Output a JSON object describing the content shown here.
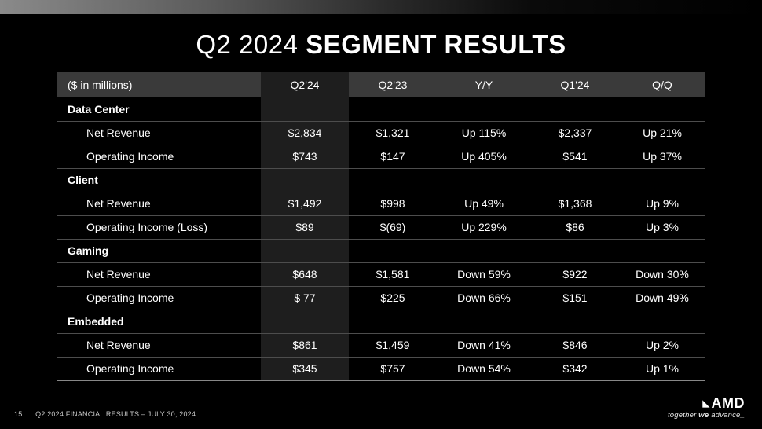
{
  "title": {
    "light": "Q2 2024 ",
    "bold": "SEGMENT RESULTS"
  },
  "table": {
    "unit_label": "($ in millions)",
    "columns": [
      "Q2'24",
      "Q2'23",
      "Y/Y",
      "Q1'24",
      "Q/Q"
    ],
    "highlight_column_index": 0,
    "highlight_bg": "#1e1e1e",
    "header_bg": "#3a3a3a",
    "border_color": "#4d4d4d",
    "segments": [
      {
        "name": "Data Center",
        "rows": [
          {
            "label": "Net Revenue",
            "values": [
              "$2,834",
              "$1,321",
              "Up 115%",
              "$2,337",
              "Up 21%"
            ]
          },
          {
            "label": "Operating Income",
            "values": [
              "$743",
              "$147",
              "Up 405%",
              "$541",
              "Up 37%"
            ]
          }
        ]
      },
      {
        "name": "Client",
        "rows": [
          {
            "label": "Net Revenue",
            "values": [
              "$1,492",
              "$998",
              "Up 49%",
              "$1,368",
              "Up 9%"
            ]
          },
          {
            "label": "Operating Income (Loss)",
            "values": [
              "$89",
              "$(69)",
              "Up 229%",
              "$86",
              "Up 3%"
            ]
          }
        ]
      },
      {
        "name": "Gaming",
        "rows": [
          {
            "label": "Net Revenue",
            "values": [
              "$648",
              "$1,581",
              "Down 59%",
              "$922",
              "Down 30%"
            ]
          },
          {
            "label": "Operating Income",
            "values": [
              "$ 77",
              "$225",
              "Down 66%",
              "$151",
              "Down 49%"
            ]
          }
        ]
      },
      {
        "name": "Embedded",
        "rows": [
          {
            "label": "Net Revenue",
            "values": [
              "$861",
              "$1,459",
              "Down 41%",
              "$846",
              "Up 2%"
            ]
          },
          {
            "label": "Operating Income",
            "values": [
              "$345",
              "$757",
              "Down 54%",
              "$342",
              "Up 1%"
            ]
          }
        ]
      }
    ]
  },
  "footer": {
    "page_number": "15",
    "caption": "Q2 2024 FINANCIAL RESULTS – JULY 30, 2024",
    "brand": "AMD",
    "tagline_prefix": "together ",
    "tagline_bold": "we",
    "tagline_suffix": " advance_"
  },
  "colors": {
    "background": "#000000",
    "text": "#ffffff",
    "footer_text": "#c8c8c8"
  }
}
